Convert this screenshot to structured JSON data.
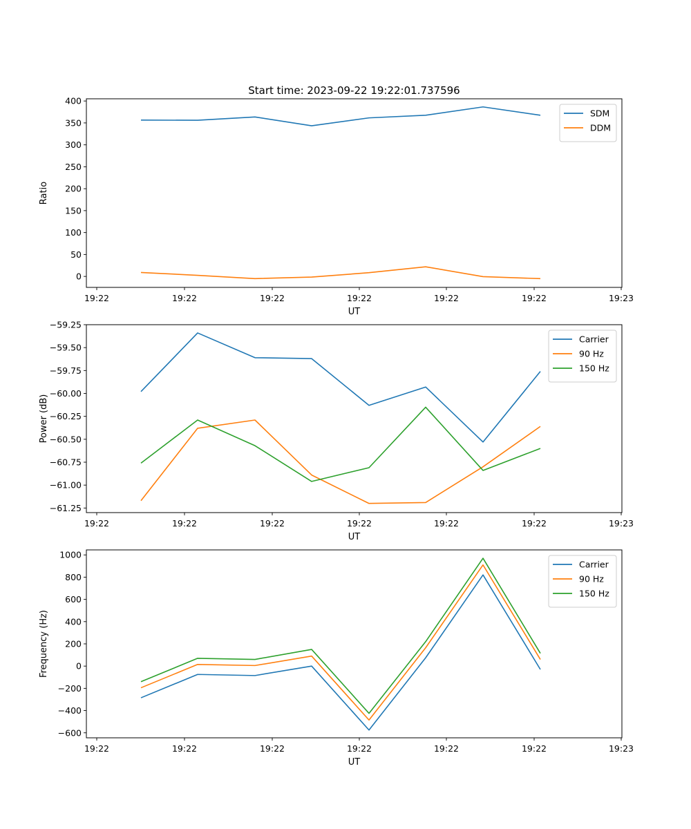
{
  "chart_data": [
    {
      "type": "line",
      "title": "Start time: 2023-09-22 19:22:01.737596",
      "xlabel": "UT",
      "ylabel": "Ratio",
      "x_tick_labels": [
        "19:22",
        "19:22",
        "19:22",
        "19:22",
        "19:22",
        "19:22",
        "19:23"
      ],
      "y_ticks": [
        0,
        50,
        100,
        150,
        200,
        250,
        300,
        350,
        400
      ],
      "ylim": [
        -25,
        405
      ],
      "grid": false,
      "legend_position": "top-right",
      "x": [
        1,
        2,
        3,
        4,
        5,
        6,
        7,
        8
      ],
      "series": [
        {
          "name": "SDM",
          "color": "#1f77b4",
          "values": [
            356.5,
            356,
            363.5,
            343.5,
            361.5,
            367.5,
            386.5,
            367.5
          ]
        },
        {
          "name": "DDM",
          "color": "#ff7f0e",
          "values": [
            9,
            2.5,
            -5,
            -1.5,
            8.5,
            22,
            -0.5,
            -5
          ]
        }
      ]
    },
    {
      "type": "line",
      "title": "",
      "xlabel": "UT",
      "ylabel": "Power (dB)",
      "x_tick_labels": [
        "19:22",
        "19:22",
        "19:22",
        "19:22",
        "19:22",
        "19:22",
        "19:23"
      ],
      "y_ticks": [
        -61.25,
        -61.0,
        -60.75,
        -60.5,
        -60.25,
        -60.0,
        -59.75,
        -59.5,
        -59.25
      ],
      "y_tick_labels": [
        "−61.25",
        "−61.00",
        "−60.75",
        "−60.50",
        "−60.25",
        "−60.00",
        "−59.75",
        "−59.50",
        "−59.25"
      ],
      "ylim": [
        -61.3,
        -59.25
      ],
      "grid": false,
      "legend_position": "top-right",
      "x": [
        1,
        2,
        3,
        4,
        5,
        6,
        7,
        8
      ],
      "series": [
        {
          "name": "Carrier",
          "color": "#1f77b4",
          "values": [
            -59.98,
            -59.34,
            -59.61,
            -59.62,
            -60.13,
            -59.93,
            -60.53,
            -59.76
          ]
        },
        {
          "name": "90 Hz",
          "color": "#ff7f0e",
          "values": [
            -61.17,
            -60.38,
            -60.29,
            -60.89,
            -61.2,
            -61.19,
            -60.8,
            -60.36
          ]
        },
        {
          "name": "150 Hz",
          "color": "#2ca02c",
          "values": [
            -60.76,
            -60.29,
            -60.57,
            -60.96,
            -60.81,
            -60.15,
            -60.84,
            -60.6
          ]
        }
      ]
    },
    {
      "type": "line",
      "title": "",
      "xlabel": "UT",
      "ylabel": "Frequency (Hz)",
      "x_tick_labels": [
        "19:22",
        "19:22",
        "19:22",
        "19:22",
        "19:22",
        "19:22",
        "19:23"
      ],
      "y_ticks": [
        -600,
        -400,
        -200,
        0,
        200,
        400,
        600,
        800,
        1000
      ],
      "y_tick_labels": [
        "−600",
        "−400",
        "−200",
        "0",
        "200",
        "400",
        "600",
        "800",
        "1000"
      ],
      "ylim": [
        -645,
        1045
      ],
      "grid": false,
      "legend_position": "top-right",
      "x": [
        1,
        2,
        3,
        4,
        5,
        6,
        7,
        8
      ],
      "series": [
        {
          "name": "Carrier",
          "color": "#1f77b4",
          "values": [
            -285,
            -75,
            -85,
            0,
            -575,
            75,
            820,
            -30
          ]
        },
        {
          "name": "90 Hz",
          "color": "#ff7f0e",
          "values": [
            -195,
            15,
            5,
            90,
            -485,
            165,
            910,
            60
          ]
        },
        {
          "name": "150 Hz",
          "color": "#2ca02c",
          "values": [
            -140,
            70,
            60,
            150,
            -425,
            220,
            970,
            115
          ]
        }
      ]
    }
  ]
}
